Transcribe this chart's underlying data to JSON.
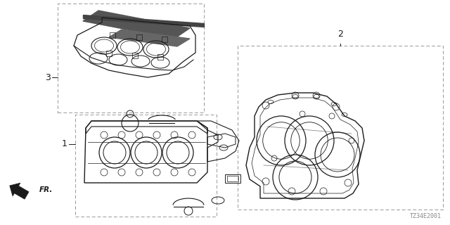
{
  "bg_color": "#ffffff",
  "line_color": "#1a1a1a",
  "dash_color": "#888888",
  "diagram_code": "TZ34E2001",
  "label1": "1",
  "label2": "2",
  "label3": "3",
  "fr_label": "FR."
}
